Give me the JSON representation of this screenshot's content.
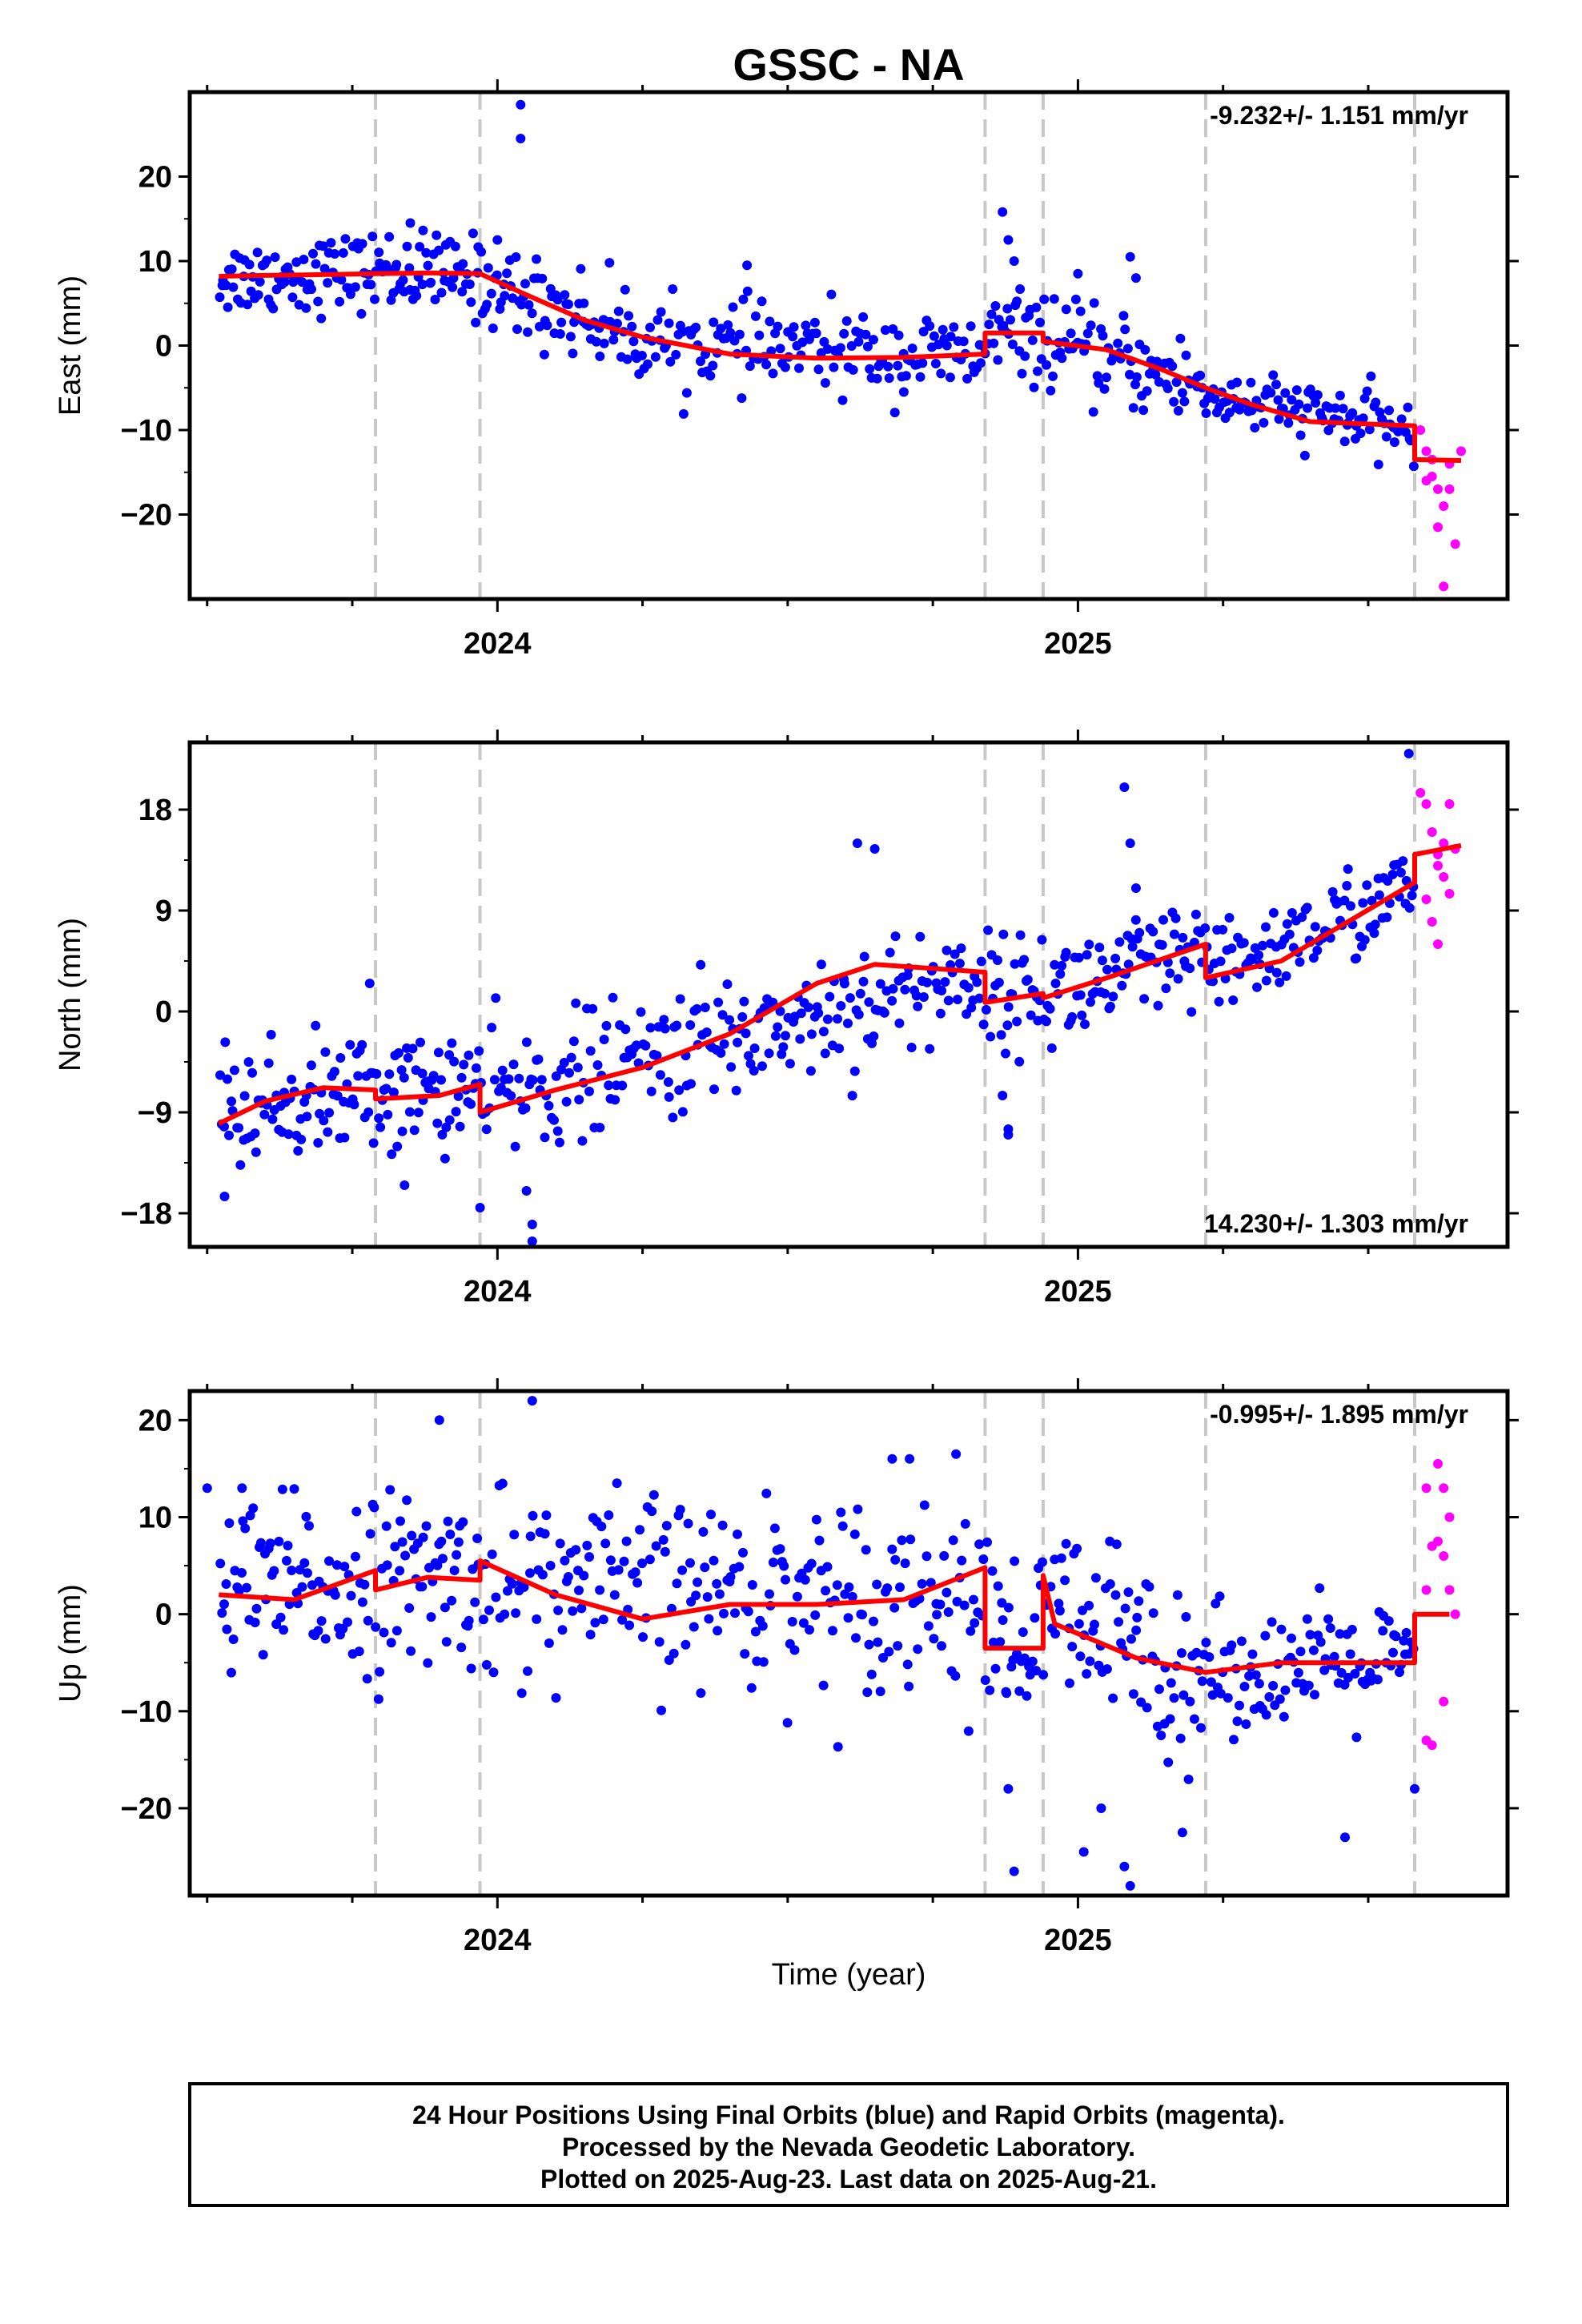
{
  "title": "GSSC - NA",
  "xlabel": "Time (year)",
  "x_tick_labels": [
    "2024",
    "2025"
  ],
  "footer": {
    "line1": "24 Hour Positions Using Final Orbits (blue) and Rapid Orbits (magenta).",
    "line2": "Processed by the Nevada Geodetic Laboratory.",
    "line3": "Plotted on 2025-Aug-23. Last data on 2025-Aug-21."
  },
  "colors": {
    "final_orbits": "#0000ff",
    "rapid_orbits": "#ff00ff",
    "model": "#ff0000",
    "breaks": "#c8c8c8"
  },
  "chart_data": [
    {
      "type": "scatter",
      "ylabel": "East (mm)",
      "rate": "-9.232+/- 1.151 mm/yr",
      "xlim": [
        2023.47,
        2025.74
      ],
      "ylim": [
        -30,
        30
      ],
      "yticks": [
        -20,
        -10,
        0,
        10,
        20
      ],
      "ytick_labels": [
        "−20",
        "−10",
        "0",
        "10",
        "20"
      ],
      "xticks": [
        2024.0,
        2025.0
      ],
      "breaks": [
        2023.79,
        2023.97,
        2024.84,
        2024.94,
        2025.22,
        2025.58
      ],
      "model": [
        [
          2023.52,
          8.2
        ],
        [
          2023.6,
          8.3
        ],
        [
          2023.7,
          8.4
        ],
        [
          2023.79,
          8.5
        ],
        [
          2023.88,
          8.6
        ],
        [
          2023.97,
          8.5
        ],
        [
          2024.05,
          6.0
        ],
        [
          2024.15,
          3.0
        ],
        [
          2024.25,
          1.0
        ],
        [
          2024.4,
          -1.0
        ],
        [
          2024.55,
          -1.5
        ],
        [
          2024.7,
          -1.4
        ],
        [
          2024.84,
          -1.0
        ],
        [
          2024.84,
          1.5
        ],
        [
          2024.94,
          1.5
        ],
        [
          2024.94,
          0.5
        ],
        [
          2025.05,
          -0.5
        ],
        [
          2025.15,
          -3.0
        ],
        [
          2025.22,
          -5.0
        ],
        [
          2025.3,
          -7.0
        ],
        [
          2025.4,
          -9.0
        ],
        [
          2025.58,
          -9.5
        ],
        [
          2025.58,
          -13.5
        ],
        [
          2025.66,
          -13.6
        ]
      ],
      "model_note": "",
      "final_segments": [
        {
          "x0": 2023.52,
          "x1": 2023.79,
          "y0": 8.0,
          "y1": 8.8,
          "spread": 2.2,
          "count": 80
        },
        {
          "x0": 2023.79,
          "x1": 2023.97,
          "y0": 9.0,
          "y1": 8.0,
          "spread": 2.4,
          "count": 55
        },
        {
          "x0": 2023.97,
          "x1": 2024.25,
          "y0": 7.5,
          "y1": 1.0,
          "spread": 2.6,
          "count": 80
        },
        {
          "x0": 2024.25,
          "x1": 2024.84,
          "y0": 0.5,
          "y1": -1.5,
          "spread": 2.4,
          "count": 150
        },
        {
          "x0": 2024.84,
          "x1": 2024.94,
          "y0": 1.5,
          "y1": 1.0,
          "spread": 2.5,
          "count": 30
        },
        {
          "x0": 2024.94,
          "x1": 2025.22,
          "y0": 0.5,
          "y1": -5.0,
          "spread": 2.6,
          "count": 80
        },
        {
          "x0": 2025.22,
          "x1": 2025.58,
          "y0": -6.0,
          "y1": -10.0,
          "spread": 1.8,
          "count": 100
        }
      ],
      "final_outliers": [
        [
          2024.04,
          28.5
        ],
        [
          2024.04,
          24.5
        ],
        [
          2024.0,
          12.5
        ],
        [
          2023.85,
          14.5
        ],
        [
          2024.87,
          15.8
        ],
        [
          2024.88,
          12.5
        ],
        [
          2024.89,
          10.0
        ],
        [
          2025.09,
          10.5
        ],
        [
          2025.1,
          8.0
        ],
        [
          2025.0,
          8.5
        ],
        [
          2024.7,
          -5.5
        ],
        [
          2024.43,
          9.5
        ]
      ],
      "rapid_points": [
        [
          2025.59,
          -10.0
        ],
        [
          2025.6,
          -12.5
        ],
        [
          2025.61,
          -15.5
        ],
        [
          2025.62,
          -17.0
        ],
        [
          2025.63,
          -19.0
        ],
        [
          2025.62,
          -21.5
        ],
        [
          2025.64,
          -14.0
        ],
        [
          2025.65,
          -23.5
        ],
        [
          2025.63,
          -28.5
        ],
        [
          2025.66,
          -12.5
        ],
        [
          2025.61,
          -13.5
        ],
        [
          2025.64,
          -17.0
        ],
        [
          2025.6,
          -16.0
        ]
      ]
    },
    {
      "type": "scatter",
      "ylabel": "North (mm)",
      "rate": "14.230+/- 1.303 mm/yr",
      "xlim": [
        2023.47,
        2025.74
      ],
      "ylim": [
        -21,
        24
      ],
      "yticks": [
        -18,
        -9,
        0,
        9,
        18
      ],
      "ytick_labels": [
        "−18",
        "−9",
        "0",
        "9",
        "18"
      ],
      "xticks": [
        2024.0,
        2025.0
      ],
      "breaks": [
        2023.79,
        2023.97,
        2024.84,
        2024.94,
        2025.22,
        2025.58
      ],
      "model": [
        [
          2023.52,
          -10.0
        ],
        [
          2023.6,
          -8.0
        ],
        [
          2023.7,
          -6.8
        ],
        [
          2023.79,
          -7.0
        ],
        [
          2023.79,
          -7.8
        ],
        [
          2023.9,
          -7.5
        ],
        [
          2023.97,
          -6.5
        ],
        [
          2023.97,
          -9.0
        ],
        [
          2024.1,
          -7.0
        ],
        [
          2024.25,
          -5.0
        ],
        [
          2024.4,
          -2.0
        ],
        [
          2024.55,
          2.5
        ],
        [
          2024.65,
          4.2
        ],
        [
          2024.84,
          3.5
        ],
        [
          2024.84,
          0.8
        ],
        [
          2024.94,
          1.6
        ],
        [
          2024.94,
          1.2
        ],
        [
          2025.05,
          3.0
        ],
        [
          2025.22,
          6.0
        ],
        [
          2025.22,
          3.0
        ],
        [
          2025.35,
          4.5
        ],
        [
          2025.58,
          11.5
        ],
        [
          2025.58,
          14.0
        ],
        [
          2025.66,
          14.8
        ]
      ],
      "final_segments": [
        {
          "x0": 2023.52,
          "x1": 2023.79,
          "y0": -9.0,
          "y1": -7.0,
          "spread": 2.6,
          "count": 80
        },
        {
          "x0": 2023.79,
          "x1": 2023.97,
          "y0": -7.5,
          "y1": -6.5,
          "spread": 2.6,
          "count": 55
        },
        {
          "x0": 2023.97,
          "x1": 2024.84,
          "y0": -8.0,
          "y1": 3.5,
          "spread": 2.8,
          "count": 230
        },
        {
          "x0": 2024.84,
          "x1": 2024.94,
          "y0": 1.5,
          "y1": 2.0,
          "spread": 2.4,
          "count": 30
        },
        {
          "x0": 2024.94,
          "x1": 2025.22,
          "y0": 1.5,
          "y1": 5.0,
          "spread": 2.6,
          "count": 80
        },
        {
          "x0": 2025.22,
          "x1": 2025.58,
          "y0": 3.0,
          "y1": 11.0,
          "spread": 2.0,
          "count": 100
        }
      ],
      "final_outliers": [
        [
          2023.78,
          2.5
        ],
        [
          2024.06,
          -19.0
        ],
        [
          2024.06,
          -20.5
        ],
        [
          2024.05,
          -16.0
        ],
        [
          2023.97,
          -17.5
        ],
        [
          2023.84,
          -15.5
        ],
        [
          2023.53,
          -16.5
        ],
        [
          2024.87,
          -7.5
        ],
        [
          2024.88,
          -10.5
        ],
        [
          2024.88,
          -11.0
        ],
        [
          2025.08,
          20.0
        ],
        [
          2025.09,
          15.0
        ],
        [
          2025.1,
          11.0
        ],
        [
          2024.62,
          15.0
        ],
        [
          2024.65,
          14.5
        ],
        [
          2025.57,
          23.0
        ]
      ],
      "rapid_points": [
        [
          2025.59,
          19.5
        ],
        [
          2025.6,
          18.5
        ],
        [
          2025.61,
          16.0
        ],
        [
          2025.62,
          14.0
        ],
        [
          2025.63,
          12.0
        ],
        [
          2025.64,
          10.5
        ],
        [
          2025.6,
          10.0
        ],
        [
          2025.61,
          8.0
        ],
        [
          2025.62,
          6.0
        ],
        [
          2025.63,
          15.0
        ],
        [
          2025.65,
          14.5
        ],
        [
          2025.64,
          18.5
        ],
        [
          2025.62,
          13.0
        ]
      ]
    },
    {
      "type": "scatter",
      "ylabel": "Up (mm)",
      "rate": "-0.995+/- 1.895 mm/yr",
      "xlim": [
        2023.47,
        2025.74
      ],
      "ylim": [
        -29,
        23
      ],
      "yticks": [
        -20,
        -10,
        0,
        10,
        20
      ],
      "ytick_labels": [
        "−20",
        "−10",
        "0",
        "10",
        "20"
      ],
      "xticks": [
        2024.0,
        2025.0
      ],
      "breaks": [
        2023.79,
        2023.97,
        2024.84,
        2024.94,
        2025.22,
        2025.58
      ],
      "model": [
        [
          2023.52,
          2.0
        ],
        [
          2023.65,
          1.5
        ],
        [
          2023.79,
          4.5
        ],
        [
          2023.79,
          2.5
        ],
        [
          2023.88,
          3.8
        ],
        [
          2023.97,
          3.5
        ],
        [
          2023.97,
          5.5
        ],
        [
          2024.1,
          2.0
        ],
        [
          2024.25,
          -0.5
        ],
        [
          2024.4,
          1.0
        ],
        [
          2024.55,
          1.0
        ],
        [
          2024.7,
          1.5
        ],
        [
          2024.84,
          4.8
        ],
        [
          2024.84,
          -3.5
        ],
        [
          2024.94,
          -3.5
        ],
        [
          2024.94,
          4.0
        ],
        [
          2024.96,
          -1.0
        ],
        [
          2025.1,
          -4.5
        ],
        [
          2025.22,
          -6.0
        ],
        [
          2025.35,
          -5.0
        ],
        [
          2025.58,
          -5.0
        ],
        [
          2025.58,
          0.0
        ],
        [
          2025.64,
          0.0
        ]
      ],
      "final_segments": [
        {
          "x0": 2023.52,
          "x1": 2023.79,
          "y0": 2.0,
          "y1": 3.5,
          "spread": 4.5,
          "count": 80
        },
        {
          "x0": 2023.79,
          "x1": 2023.97,
          "y0": 3.0,
          "y1": 4.0,
          "spread": 4.5,
          "count": 55
        },
        {
          "x0": 2023.97,
          "x1": 2024.84,
          "y0": 3.0,
          "y1": 2.0,
          "spread": 4.8,
          "count": 230
        },
        {
          "x0": 2024.84,
          "x1": 2024.94,
          "y0": -3.0,
          "y1": -3.0,
          "spread": 4.5,
          "count": 30
        },
        {
          "x0": 2024.94,
          "x1": 2025.22,
          "y0": 0.0,
          "y1": -6.0,
          "spread": 5.0,
          "count": 80
        },
        {
          "x0": 2025.22,
          "x1": 2025.58,
          "y0": -6.0,
          "y1": -5.0,
          "spread": 3.0,
          "count": 100
        }
      ],
      "final_outliers": [
        [
          2024.06,
          22.0
        ],
        [
          2023.9,
          20.0
        ],
        [
          2024.68,
          16.0
        ],
        [
          2024.71,
          16.0
        ],
        [
          2024.79,
          16.5
        ],
        [
          2023.5,
          13.0
        ],
        [
          2023.56,
          13.0
        ],
        [
          2024.89,
          -26.5
        ],
        [
          2024.88,
          -18.0
        ],
        [
          2025.09,
          -28.0
        ],
        [
          2025.08,
          -26.0
        ],
        [
          2025.01,
          -24.5
        ],
        [
          2025.18,
          -22.5
        ],
        [
          2025.46,
          -23.0
        ],
        [
          2025.58,
          -18.0
        ],
        [
          2025.04,
          -20.0
        ]
      ],
      "rapid_points": [
        [
          2025.6,
          13.0
        ],
        [
          2025.62,
          15.5
        ],
        [
          2025.63,
          13.0
        ],
        [
          2025.61,
          7.0
        ],
        [
          2025.63,
          6.0
        ],
        [
          2025.64,
          2.5
        ],
        [
          2025.65,
          0.0
        ],
        [
          2025.6,
          -13.0
        ],
        [
          2025.61,
          -13.5
        ],
        [
          2025.63,
          -9.0
        ],
        [
          2025.62,
          7.5
        ],
        [
          2025.64,
          10.0
        ],
        [
          2025.6,
          2.5
        ]
      ]
    }
  ]
}
